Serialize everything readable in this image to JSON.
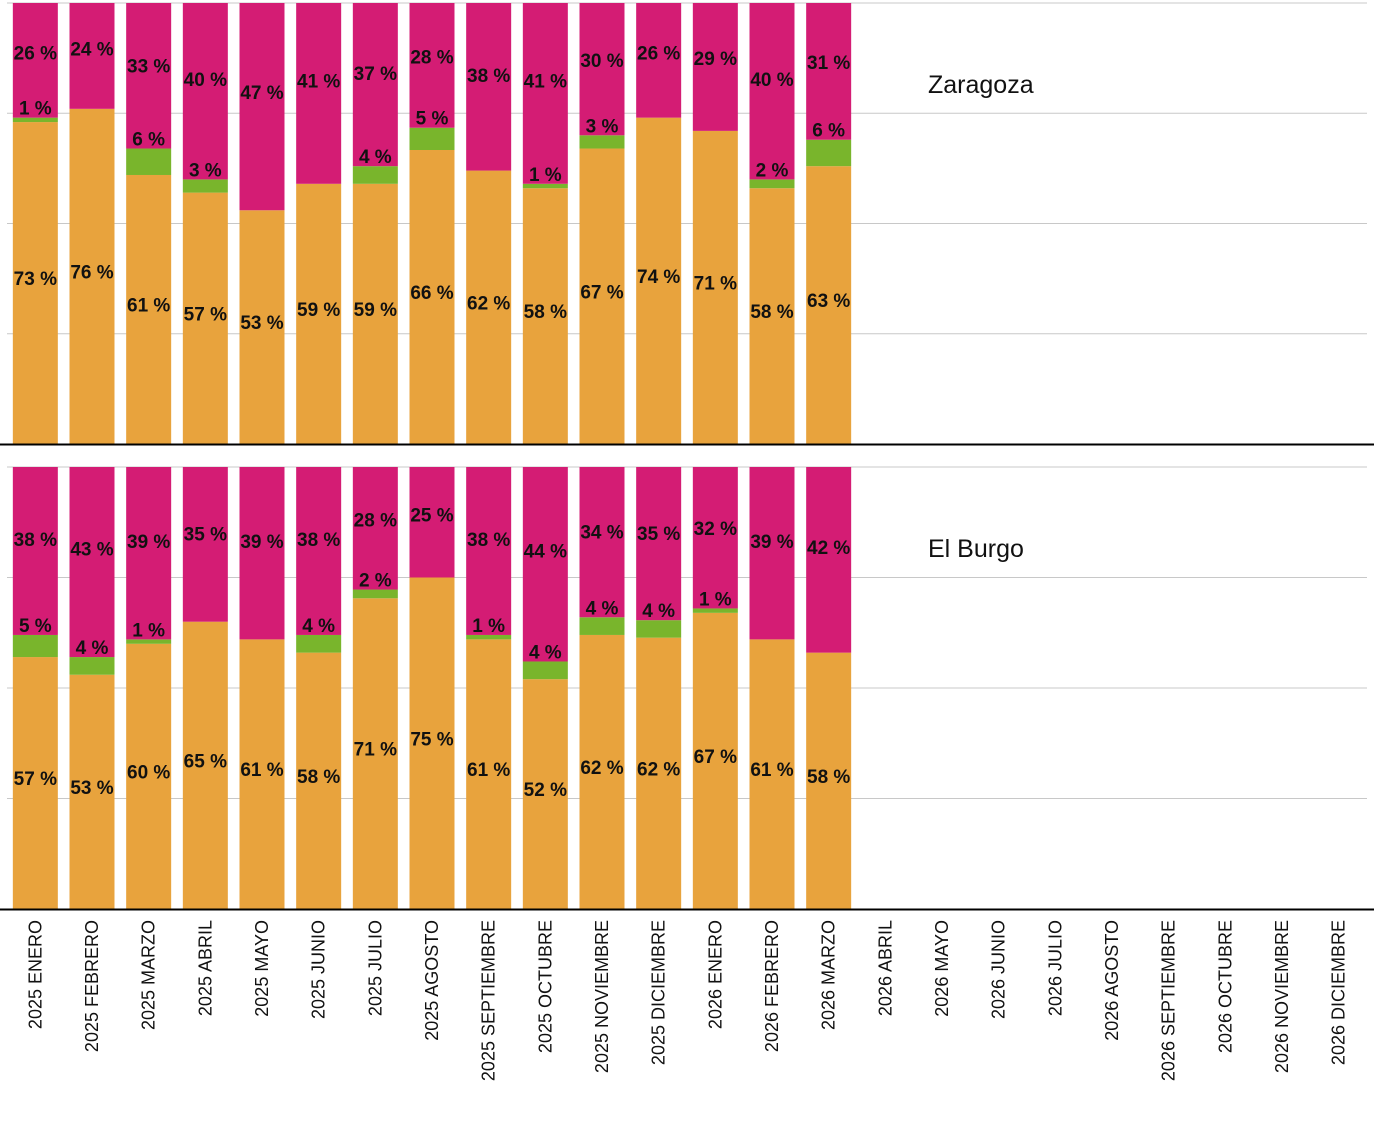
{
  "chart_data": {
    "type": "bar",
    "stacked": true,
    "normalized_percent": true,
    "categories": [
      "2025 ENERO",
      "2025 FEBRERO",
      "2025 MARZO",
      "2025 ABRIL",
      "2025 MAYO",
      "2025 JUNIO",
      "2025 JULIO",
      "2025 AGOSTO",
      "2025 SEPTIEMBRE",
      "2025 OCTUBRE",
      "2025 NOVIEMBRE",
      "2025 DICIEMBRE",
      "2026 ENERO",
      "2026 FEBRERO",
      "2026 MARZO",
      "2026 ABRIL",
      "2026 MAYO",
      "2026 JUNIO",
      "2026 JULIO",
      "2026 AGOSTO",
      "2026 SEPTIEMBRE",
      "2026 OCTUBRE",
      "2026 NOVIEMBRE",
      "2026 DICIEMBRE"
    ],
    "colors": {
      "orange": "#E8A33D",
      "green": "#79B52C",
      "magenta": "#D41C74"
    },
    "grid": true,
    "legend": "none",
    "panels": [
      {
        "title": "Zaragoza",
        "series": [
          {
            "color": "orange",
            "values": [
              73,
              76,
              61,
              57,
              53,
              59,
              59,
              66,
              62,
              58,
              67,
              74,
              71,
              58,
              63
            ],
            "labels": [
              "73 %",
              "76 %",
              "61 %",
              "57 %",
              "53 %",
              "59 %",
              "59 %",
              "66 %",
              "62 %",
              "58 %",
              "67 %",
              "74 %",
              "71 %",
              "58 %",
              "63 %"
            ]
          },
          {
            "color": "green",
            "values": [
              1,
              0,
              6,
              3,
              0,
              0,
              4,
              5,
              0,
              1,
              3,
              0,
              0,
              2,
              6
            ],
            "labels": [
              "1 %",
              "",
              "6 %",
              "3 %",
              "",
              "",
              "4 %",
              "5 %",
              "",
              "1 %",
              "3 %",
              "",
              "",
              "2 %",
              "6 %"
            ]
          },
          {
            "color": "magenta",
            "values": [
              26,
              24,
              33,
              40,
              47,
              41,
              37,
              28,
              38,
              41,
              30,
              26,
              29,
              40,
              31
            ],
            "labels": [
              "26 %",
              "24 %",
              "33 %",
              "40 %",
              "47 %",
              "41 %",
              "37 %",
              "28 %",
              "38 %",
              "41 %",
              "30 %",
              "26 %",
              "29 %",
              "40 %",
              "31 %"
            ]
          }
        ]
      },
      {
        "title": "El Burgo",
        "series": [
          {
            "color": "orange",
            "values": [
              57,
              53,
              60,
              65,
              61,
              58,
              71,
              75,
              61,
              52,
              62,
              62,
              67,
              61,
              58
            ],
            "labels": [
              "57 %",
              "53 %",
              "60 %",
              "65 %",
              "61 %",
              "58 %",
              "71 %",
              "75 %",
              "61 %",
              "52 %",
              "62 %",
              "62 %",
              "67 %",
              "61 %",
              "58 %"
            ]
          },
          {
            "color": "green",
            "values": [
              5,
              4,
              1,
              0,
              0,
              4,
              2,
              0,
              1,
              4,
              4,
              4,
              1,
              0,
              0
            ],
            "labels": [
              "5 %",
              "4 %",
              "1 %",
              "",
              "",
              "4 %",
              "2 %",
              "",
              "1 %",
              "4 %",
              "4 %",
              "4 %",
              "1 %",
              "",
              ""
            ]
          },
          {
            "color": "magenta",
            "values": [
              38,
              43,
              39,
              35,
              39,
              38,
              28,
              25,
              38,
              44,
              34,
              35,
              32,
              39,
              42
            ],
            "labels": [
              "38 %",
              "43 %",
              "39 %",
              "35 %",
              "39 %",
              "38 %",
              "28 %",
              "25 %",
              "38 %",
              "44 %",
              "34 %",
              "35 %",
              "32 %",
              "39 %",
              "42 %"
            ]
          }
        ]
      }
    ]
  }
}
